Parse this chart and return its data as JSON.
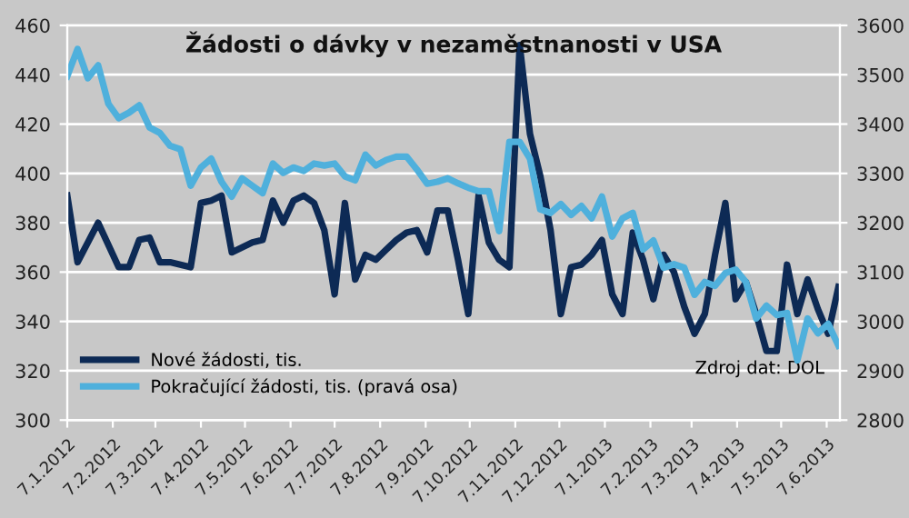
{
  "chart_data": {
    "type": "line",
    "title": "Žádosti o dávky v nezaměstnanosti v USA",
    "x": [
      "2012-01-07",
      "2012-01-14",
      "2012-01-21",
      "2012-01-28",
      "2012-02-04",
      "2012-02-11",
      "2012-02-18",
      "2012-02-25",
      "2012-03-03",
      "2012-03-10",
      "2012-03-17",
      "2012-03-24",
      "2012-03-31",
      "2012-04-07",
      "2012-04-14",
      "2012-04-21",
      "2012-04-28",
      "2012-05-05",
      "2012-05-12",
      "2012-05-19",
      "2012-05-26",
      "2012-06-02",
      "2012-06-09",
      "2012-06-16",
      "2012-06-23",
      "2012-06-30",
      "2012-07-07",
      "2012-07-14",
      "2012-07-21",
      "2012-07-28",
      "2012-08-04",
      "2012-08-11",
      "2012-08-18",
      "2012-08-25",
      "2012-09-01",
      "2012-09-08",
      "2012-09-15",
      "2012-09-22",
      "2012-09-29",
      "2012-10-06",
      "2012-10-13",
      "2012-10-20",
      "2012-10-27",
      "2012-11-03",
      "2012-11-10",
      "2012-11-17",
      "2012-11-24",
      "2012-12-01",
      "2012-12-08",
      "2012-12-15",
      "2012-12-22",
      "2012-12-29",
      "2013-01-05",
      "2013-01-12",
      "2013-01-19",
      "2013-01-26",
      "2013-02-02",
      "2013-02-09",
      "2013-02-16",
      "2013-02-23",
      "2013-03-02",
      "2013-03-09",
      "2013-03-16",
      "2013-03-23",
      "2013-03-30",
      "2013-04-06",
      "2013-04-13",
      "2013-04-20",
      "2013-04-27",
      "2013-05-04",
      "2013-05-11",
      "2013-05-18",
      "2013-05-25",
      "2013-06-01",
      "2013-06-08",
      "2013-06-15"
    ],
    "series": [
      {
        "name": "Nové žádosti, tis.",
        "color": "#0d2a55",
        "values": [
          391,
          364,
          372,
          380,
          371,
          362,
          362,
          373,
          374,
          364,
          364,
          363,
          362,
          388,
          389,
          391,
          368,
          370,
          372,
          373,
          389,
          380,
          389,
          391,
          388,
          377,
          351,
          388,
          357,
          367,
          365,
          369,
          373,
          376,
          377,
          368,
          385,
          385,
          365,
          343,
          391,
          372,
          365,
          362,
          452,
          416,
          399,
          377,
          343,
          362,
          363,
          367,
          373,
          351,
          343,
          376,
          365,
          349,
          367,
          360,
          346,
          335,
          343,
          367,
          388,
          349,
          356,
          343,
          328,
          328,
          363,
          343,
          357,
          345,
          335,
          354
        ]
      },
      {
        "name": "Pokračující žádosti, tis. (pravá osa)",
        "color": "#4fb0dc",
        "axis": "y2",
        "values": [
          3497,
          3552,
          3493,
          3519,
          3441,
          3412,
          3423,
          3438,
          3393,
          3382,
          3356,
          3349,
          3275,
          3312,
          3330,
          3283,
          3253,
          3290,
          3275,
          3260,
          3320,
          3301,
          3312,
          3305,
          3320,
          3316,
          3320,
          3294,
          3286,
          3338,
          3316,
          3327,
          3334,
          3334,
          3308,
          3279,
          3283,
          3290,
          3280,
          3271,
          3264,
          3264,
          3183,
          3364,
          3364,
          3330,
          3227,
          3220,
          3238,
          3216,
          3234,
          3209,
          3253,
          3172,
          3209,
          3220,
          3146,
          3164,
          3109,
          3116,
          3109,
          3054,
          3080,
          3072,
          3098,
          3105,
          3080,
          3006,
          3032,
          3013,
          3017,
          2921,
          3006,
          2976,
          2995,
          2951
        ]
      }
    ],
    "xlim": [
      "2012-01-07",
      "2013-06-16"
    ],
    "xticks": [
      {
        "value": "2012-01-07",
        "label": "7.1.2012"
      },
      {
        "value": "2012-02-07",
        "label": "7.2.2012"
      },
      {
        "value": "2012-03-07",
        "label": "7.3.2012"
      },
      {
        "value": "2012-04-07",
        "label": "7.4.2012"
      },
      {
        "value": "2012-05-07",
        "label": "7.5.2012"
      },
      {
        "value": "2012-06-07",
        "label": "7.6.2012"
      },
      {
        "value": "2012-07-07",
        "label": "7.7.2012"
      },
      {
        "value": "2012-08-07",
        "label": "7.8.2012"
      },
      {
        "value": "2012-09-07",
        "label": "7.9.2012"
      },
      {
        "value": "2012-10-07",
        "label": "7.10.2012"
      },
      {
        "value": "2012-11-07",
        "label": "7.11.2012"
      },
      {
        "value": "2012-12-07",
        "label": "7.12.2012"
      },
      {
        "value": "2013-01-07",
        "label": "7.1.2013"
      },
      {
        "value": "2013-02-07",
        "label": "7.2.2013"
      },
      {
        "value": "2013-03-07",
        "label": "7.3.2013"
      },
      {
        "value": "2013-04-07",
        "label": "7.4.2013"
      },
      {
        "value": "2013-05-07",
        "label": "7.5.2013"
      },
      {
        "value": "2013-06-07",
        "label": "7.6.2013"
      }
    ],
    "ylim": [
      300,
      460
    ],
    "yticks": [
      300,
      320,
      340,
      360,
      380,
      400,
      420,
      440,
      460
    ],
    "y2lim": [
      2800,
      3600
    ],
    "y2ticks": [
      2800,
      2900,
      3000,
      3100,
      3200,
      3300,
      3400,
      3500,
      3600
    ],
    "grid": "y",
    "legend": "bottom left",
    "line_style": "solid",
    "marker": "none",
    "annotations": [
      "Zdroj dat: DOL"
    ]
  }
}
